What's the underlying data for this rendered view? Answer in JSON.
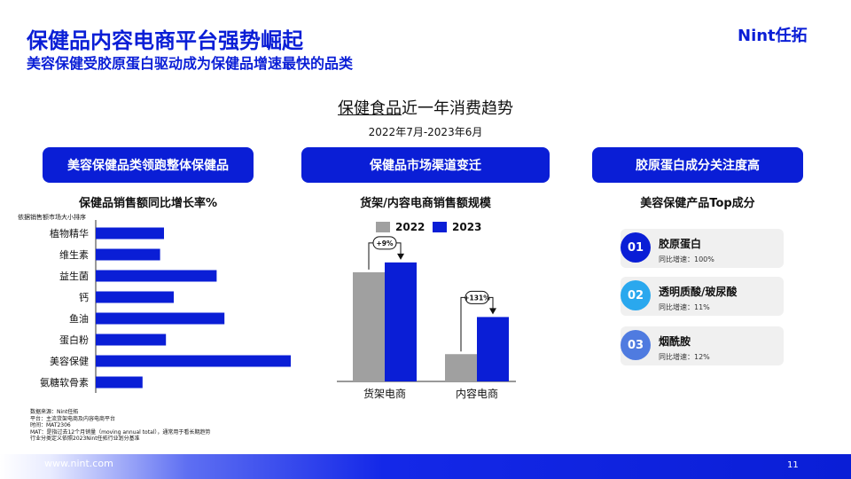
{
  "header": {
    "title": "保健品内容电商平台强势崛起",
    "subtitle": "美容保健受胶原蛋白驱动成为保健品增速最快的品类",
    "brand": "Nint任拓"
  },
  "center": {
    "title_underlined": "保健食品",
    "title_rest": "近一年消费趋势",
    "period": "2022年7月-2023年6月"
  },
  "panels": {
    "left_pill": "美容保健品类领跑整体保健品",
    "mid_pill": "保健品市场渠道变迁",
    "right_pill": "胶原蛋白成分关注度高",
    "left_subhead": "保健品销售额同比增长率%",
    "mid_subhead": "货架/内容电商销售额规模",
    "right_subhead": "美容保健产品Top成分",
    "sort_note": "依据销售额市场大小排序"
  },
  "chart_data": [
    {
      "type": "bar",
      "orientation": "horizontal",
      "title": "保健品销售额同比增长率%",
      "categories": [
        "植物精华",
        "维生素",
        "益生菌",
        "钙",
        "鱼油",
        "蛋白粉",
        "美容保健",
        "氨糖软骨素"
      ],
      "values": [
        35,
        33,
        62,
        40,
        66,
        36,
        100,
        24
      ],
      "grid": false,
      "colors": {
        "bar": "#0a1ed6"
      }
    },
    {
      "type": "bar",
      "title": "货架/内容电商销售额规模",
      "categories": [
        "货架电商",
        "内容电商"
      ],
      "series": [
        {
          "name": "2022",
          "values": [
            100,
            25
          ],
          "color": "#a0a0a0"
        },
        {
          "name": "2023",
          "values": [
            109,
            59
          ],
          "color": "#0a1ed6"
        }
      ],
      "annotations": [
        "+9%",
        "+131%"
      ],
      "legend": "top-center",
      "grid": false
    }
  ],
  "ingredients": [
    {
      "num": "01",
      "name": "胶原蛋白",
      "growth": "同比增速：100%",
      "color": "#0a1ed6"
    },
    {
      "num": "02",
      "name": "透明质酸/玻尿酸",
      "growth": "同比增速：11%",
      "color": "#2aa8ee"
    },
    {
      "num": "03",
      "name": "烟酰胺",
      "growth": "同比增速：12%",
      "color": "#4f7be0"
    }
  ],
  "notes": [
    "数据来源：Nint任拓",
    "平台：主流货架电商及内容电商平台",
    "时间：MAT2306",
    "MAT：是指过去12个月销量（moving annual total），通常用于看长期趋势",
    "行业分类定义依照2023Nint任拓行业划分基准"
  ],
  "footer": {
    "url": "www.nint.com",
    "page": "11"
  }
}
